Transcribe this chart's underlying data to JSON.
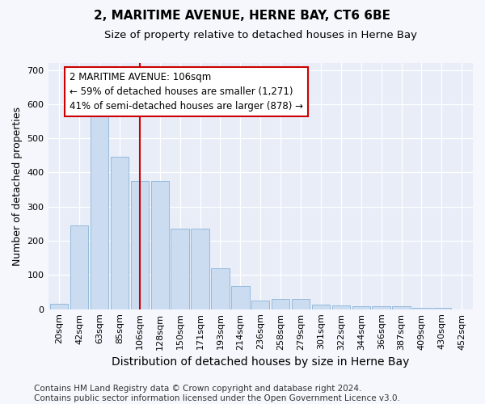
{
  "title": "2, MARITIME AVENUE, HERNE BAY, CT6 6BE",
  "subtitle": "Size of property relative to detached houses in Herne Bay",
  "xlabel": "Distribution of detached houses by size in Herne Bay",
  "ylabel": "Number of detached properties",
  "footer_line1": "Contains HM Land Registry data © Crown copyright and database right 2024.",
  "footer_line2": "Contains public sector information licensed under the Open Government Licence v3.0.",
  "categories": [
    "20sqm",
    "42sqm",
    "63sqm",
    "85sqm",
    "106sqm",
    "128sqm",
    "150sqm",
    "171sqm",
    "193sqm",
    "214sqm",
    "236sqm",
    "258sqm",
    "279sqm",
    "301sqm",
    "322sqm",
    "344sqm",
    "366sqm",
    "387sqm",
    "409sqm",
    "430sqm",
    "452sqm"
  ],
  "values": [
    15,
    245,
    585,
    447,
    375,
    375,
    235,
    235,
    120,
    68,
    25,
    30,
    30,
    13,
    10,
    8,
    8,
    8,
    4,
    4,
    0
  ],
  "bar_color": "#ccdcf0",
  "bar_edge_color": "#8ab4d8",
  "vline_x_index": 4,
  "vline_color": "#cc0000",
  "annotation_line1": "2 MARITIME AVENUE: 106sqm",
  "annotation_line2": "← 59% of detached houses are smaller (1,271)",
  "annotation_line3": "41% of semi-detached houses are larger (878) →",
  "annotation_box_color": "#ffffff",
  "annotation_box_edge": "#cc0000",
  "ylim": [
    0,
    720
  ],
  "yticks": [
    0,
    100,
    200,
    300,
    400,
    500,
    600,
    700
  ],
  "fig_background_color": "#f5f7fc",
  "plot_background_color": "#e8edf8",
  "grid_color": "#ffffff",
  "title_fontsize": 11,
  "subtitle_fontsize": 9.5,
  "ylabel_fontsize": 9,
  "xlabel_fontsize": 10,
  "tick_fontsize": 8,
  "footer_fontsize": 7.5,
  "annotation_fontsize": 8.5
}
